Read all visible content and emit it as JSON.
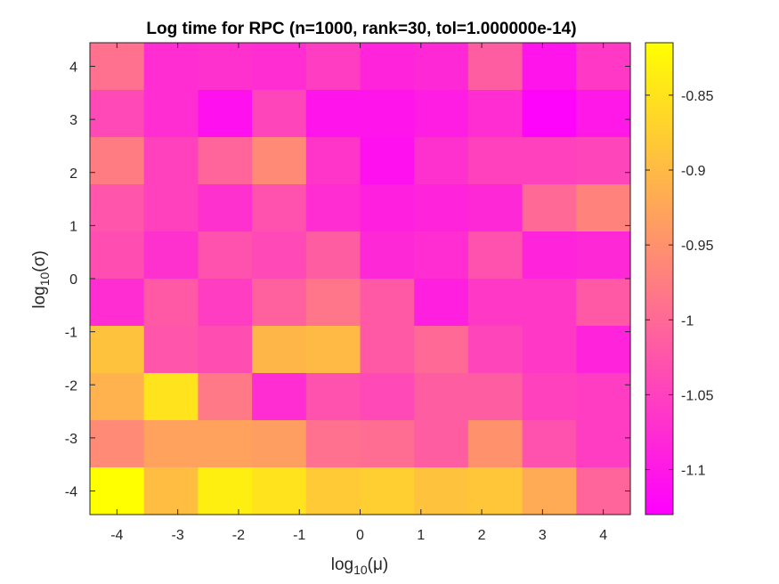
{
  "chart_data": {
    "type": "heatmap",
    "title": "Log time for RPC (n=1000, rank=30, tol=1.000000e-14)",
    "xlabel": {
      "base": "log",
      "sub": "10",
      "arg": "(μ)"
    },
    "ylabel": {
      "base": "log",
      "sub": "10",
      "arg": "(σ)"
    },
    "x": [
      -4,
      -3,
      -2,
      -1,
      0,
      1,
      2,
      3,
      4
    ],
    "y": [
      4,
      3,
      2,
      1,
      0,
      -1,
      -2,
      -3,
      -4
    ],
    "x_tick_labels": [
      "-4",
      "-3",
      "-2",
      "-1",
      "0",
      "1",
      "2",
      "3",
      "4"
    ],
    "y_tick_labels": [
      "4",
      "3",
      "2",
      "1",
      "0",
      "-1",
      "-2",
      "-3",
      "-4"
    ],
    "rows": 10,
    "cols": 10,
    "values": [
      [
        -0.99,
        -1.075,
        -1.07,
        -1.075,
        -1.055,
        -1.085,
        -1.08,
        -1.015,
        -1.105,
        -1.06
      ],
      [
        -1.04,
        -1.075,
        -1.11,
        -1.045,
        -1.105,
        -1.105,
        -1.095,
        -1.075,
        -1.125,
        -1.1
      ],
      [
        -0.975,
        -1.05,
        -1.005,
        -0.96,
        -1.065,
        -1.11,
        -1.07,
        -1.05,
        -1.05,
        -1.045
      ],
      [
        -1.025,
        -1.05,
        -1.07,
        -1.03,
        -1.075,
        -1.09,
        -1.085,
        -1.08,
        -1.0,
        -0.97
      ],
      [
        -1.035,
        -1.07,
        -1.03,
        -1.04,
        -1.015,
        -1.08,
        -1.075,
        -1.03,
        -1.085,
        -1.08
      ],
      [
        -1.075,
        -1.02,
        -1.055,
        -1.01,
        -0.985,
        -1.02,
        -1.09,
        -1.06,
        -1.06,
        -1.02
      ],
      [
        -0.89,
        -1.025,
        -1.035,
        -0.905,
        -0.9,
        -1.02,
        -1.0,
        -1.045,
        -1.06,
        -1.085
      ],
      [
        -0.91,
        -0.85,
        -0.98,
        -1.075,
        -1.03,
        -1.04,
        -1.015,
        -1.015,
        -1.05,
        -1.055
      ],
      [
        -0.96,
        -0.93,
        -0.93,
        -0.935,
        -0.99,
        -0.995,
        -1.015,
        -0.95,
        -1.03,
        -1.055
      ],
      [
        -0.815,
        -0.895,
        -0.835,
        -0.85,
        -0.88,
        -0.875,
        -0.89,
        -0.885,
        -0.92,
        -1.005
      ]
    ],
    "colorbar": {
      "min": -1.13,
      "max": -0.815,
      "ticks": [
        -1.1,
        -1.05,
        -1,
        -0.95,
        -0.9,
        -0.85
      ],
      "tick_labels": [
        "-1.1",
        "-1.05",
        "-1",
        "-0.95",
        "-0.9",
        "-0.85"
      ],
      "colormap": "spring",
      "low_color": "#ff00ff",
      "high_color": "#ffff00"
    },
    "grid": false,
    "legend": "none"
  }
}
